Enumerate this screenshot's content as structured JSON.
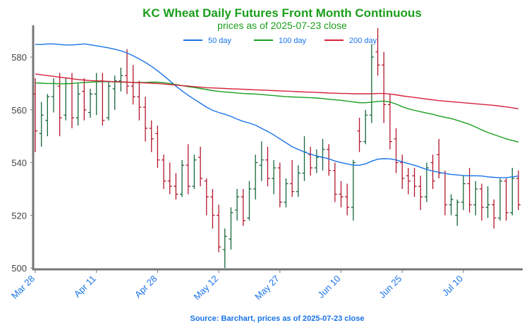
{
  "chart_data": {
    "type": "ohlc",
    "title": "KC Wheat Daily Futures Front Month Continuous",
    "subtitle": "prices as of 2025-07-23 close",
    "source": "Source: Barchart, prices as of 2025-07-23 close",
    "categories": [
      "Mar 28",
      null,
      null,
      null,
      null,
      null,
      null,
      null,
      null,
      null,
      "Apr 11",
      null,
      null,
      null,
      null,
      null,
      null,
      null,
      null,
      null,
      "Apr 28",
      null,
      null,
      null,
      null,
      null,
      null,
      null,
      null,
      null,
      "May 12",
      null,
      null,
      null,
      null,
      null,
      null,
      null,
      null,
      null,
      "May 27",
      null,
      null,
      null,
      null,
      null,
      null,
      null,
      null,
      null,
      "Jun 10",
      null,
      null,
      null,
      null,
      null,
      null,
      null,
      null,
      null,
      "Jun 25",
      null,
      null,
      null,
      null,
      null,
      null,
      null,
      null,
      null,
      "Jul 10",
      null,
      null,
      null,
      null,
      null,
      null,
      null,
      null,
      null
    ],
    "ohlc": {
      "up_color": "#14673a",
      "down_color": "#b3162c",
      "open": [
        566,
        551,
        556,
        565,
        569,
        558,
        570,
        557,
        567,
        559,
        566,
        571,
        557,
        568,
        571,
        573,
        569,
        565,
        561,
        553,
        551,
        541,
        533,
        531,
        528,
        539,
        531,
        542,
        533,
        527,
        520,
        507,
        511,
        522,
        527,
        519,
        530,
        539,
        541,
        534,
        538,
        525,
        532,
        529,
        536,
        543,
        538,
        542,
        545,
        537,
        528,
        527,
        523,
        552,
        548,
        558,
        582,
        577,
        562,
        549,
        540,
        535,
        535,
        531,
        527,
        540,
        543,
        536,
        524,
        520,
        525,
        532,
        524,
        530,
        523,
        524,
        519,
        533,
        521,
        534
      ],
      "high": [
        572,
        563,
        566,
        572,
        574,
        572,
        574,
        570,
        572,
        568,
        574,
        574,
        571,
        573,
        576,
        583,
        577,
        571,
        565,
        556,
        554,
        543,
        540,
        536,
        541,
        547,
        543,
        546,
        534,
        530,
        524,
        515,
        523,
        530,
        530,
        533,
        543,
        548,
        546,
        541,
        540,
        534,
        541,
        539,
        550,
        546,
        545,
        549,
        547,
        540,
        533,
        532,
        541,
        557,
        560,
        585,
        591,
        582,
        566,
        553,
        543,
        538,
        538,
        535,
        540,
        543,
        549,
        537,
        528,
        526,
        535,
        538,
        533,
        532,
        531,
        526,
        534,
        534,
        538,
        537
      ],
      "low": [
        544,
        546,
        550,
        559,
        550,
        556,
        553,
        554,
        556,
        557,
        558,
        554,
        556,
        560,
        567,
        566,
        562,
        556,
        548,
        544,
        538,
        530,
        528,
        526,
        527,
        528,
        530,
        531,
        520,
        515,
        506,
        500,
        507,
        518,
        516,
        518,
        526,
        533,
        531,
        528,
        523,
        523,
        527,
        527,
        533,
        535,
        536,
        537,
        535,
        525,
        523,
        520,
        518,
        544,
        547,
        555,
        573,
        555,
        545,
        536,
        530,
        528,
        527,
        522,
        525,
        530,
        534,
        520,
        520,
        516,
        522,
        521,
        520,
        518,
        519,
        515,
        518,
        518,
        520,
        522
      ],
      "close": [
        552,
        558,
        565,
        570,
        557,
        570,
        557,
        566,
        560,
        566,
        571,
        556,
        569,
        571,
        573,
        569,
        565,
        561,
        553,
        549,
        541,
        533,
        531,
        528,
        539,
        531,
        541,
        534,
        527,
        520,
        508,
        512,
        521,
        527,
        518,
        530,
        540,
        541,
        534,
        538,
        525,
        532,
        529,
        536,
        544,
        538,
        542,
        545,
        537,
        528,
        527,
        523,
        540,
        548,
        558,
        580,
        577,
        562,
        548,
        540,
        534,
        533,
        531,
        527,
        538,
        533,
        536,
        524,
        526,
        525,
        532,
        524,
        530,
        523,
        524,
        519,
        533,
        521,
        534,
        524
      ]
    },
    "series": [
      {
        "name": "50 day",
        "color": "#1a73e8",
        "values": [
          584.8,
          584.8,
          585.0,
          585.0,
          584.8,
          584.6,
          584.6,
          584.8,
          585.0,
          584.7,
          584.3,
          583.9,
          583.5,
          583.0,
          582.4,
          581.6,
          580.5,
          579.3,
          578.0,
          576.5,
          574.8,
          573.0,
          571.0,
          569.0,
          567.2,
          565.5,
          564.0,
          562.5,
          561.0,
          559.8,
          559.0,
          558.3,
          557.5,
          556.5,
          555.6,
          555.0,
          554.2,
          553.0,
          551.8,
          550.5,
          549.0,
          547.5,
          546.0,
          545.0,
          544.0,
          543.2,
          542.5,
          542.0,
          541.4,
          540.6,
          540.0,
          539.5,
          539.0,
          539.0,
          539.5,
          540.5,
          541.3,
          541.5,
          541.4,
          541.0,
          540.3,
          539.6,
          539.0,
          538.2,
          537.4,
          536.8,
          536.3,
          535.9,
          535.5,
          535.3,
          535.1,
          535.0,
          535.0,
          534.9,
          534.6,
          534.4,
          534.3,
          534.3,
          534.6,
          534.9
        ]
      },
      {
        "name": "100 day",
        "color": "#17a01f",
        "values": [
          570.2,
          570.1,
          570.0,
          570.0,
          569.9,
          569.9,
          570.0,
          570.2,
          570.4,
          570.5,
          570.6,
          570.7,
          570.7,
          570.6,
          570.5,
          570.5,
          570.4,
          570.4,
          570.4,
          570.5,
          570.5,
          570.3,
          570.0,
          569.6,
          569.2,
          568.8,
          568.5,
          568.1,
          567.7,
          567.3,
          567.0,
          566.8,
          566.6,
          566.4,
          566.2,
          566.1,
          566.0,
          565.8,
          565.6,
          565.4,
          565.2,
          565.0,
          564.9,
          564.8,
          564.7,
          564.6,
          564.5,
          564.3,
          564.0,
          563.8,
          563.6,
          563.3,
          563.0,
          562.7,
          562.7,
          562.9,
          563.2,
          563.3,
          563.0,
          562.2,
          561.2,
          560.4,
          559.8,
          559.3,
          558.8,
          558.3,
          557.7,
          557.2,
          556.7,
          556.0,
          555.3,
          554.5,
          553.5,
          552.4,
          551.4,
          550.6,
          549.8,
          549.0,
          548.4,
          547.8
        ]
      },
      {
        "name": "200 day",
        "color": "#d6203c",
        "values": [
          573.6,
          573.3,
          573.0,
          572.7,
          572.4,
          572.1,
          571.8,
          571.5,
          571.3,
          571.1,
          571.0,
          570.9,
          570.8,
          570.7,
          570.6,
          570.5,
          570.4,
          570.3,
          570.2,
          570.1,
          570.0,
          569.8,
          569.6,
          569.4,
          569.2,
          569.0,
          568.8,
          568.6,
          568.4,
          568.3,
          568.2,
          568.1,
          568.0,
          567.9,
          567.8,
          567.7,
          567.6,
          567.5,
          567.4,
          567.3,
          567.2,
          567.1,
          567.0,
          566.9,
          566.8,
          566.7,
          566.6,
          566.5,
          566.4,
          566.3,
          566.2,
          566.2,
          566.1,
          566.1,
          566.1,
          566.1,
          566.2,
          566.2,
          566.0,
          565.7,
          565.3,
          565.0,
          564.7,
          564.4,
          564.1,
          563.8,
          563.5,
          563.3,
          563.1,
          562.9,
          562.7,
          562.5,
          562.3,
          562.1,
          561.9,
          561.7,
          561.4,
          561.1,
          560.8,
          560.4
        ]
      }
    ],
    "ylim": [
      499.5,
      591.5
    ],
    "yticks": [
      500,
      520,
      540,
      560,
      580
    ]
  }
}
